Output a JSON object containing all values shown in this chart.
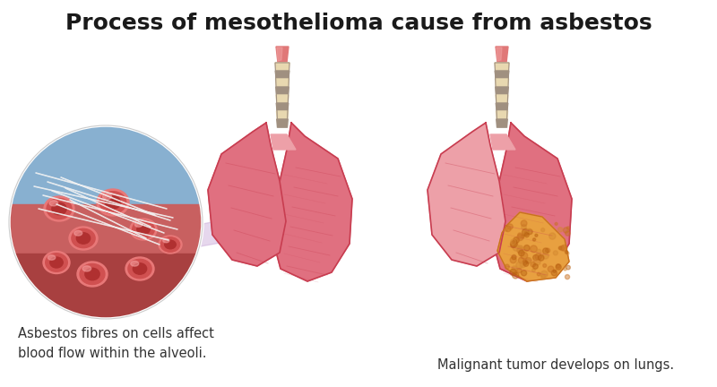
{
  "title": "Process of mesothelioma cause from asbestos",
  "title_fontsize": 18,
  "title_color": "#1a1a1a",
  "bg_color": "#ffffff",
  "caption1": "Asbestos fibres on cells affect\nblood flow within the alveoli.",
  "caption2": "Malignant tumor develops on lungs.",
  "caption_fontsize": 10.5,
  "lung_pink_dark": "#c83d50",
  "lung_pink_mid": "#e07080",
  "lung_pink_light": "#eda0a8",
  "lung_pink_vlight": "#f2bfc5",
  "lung_pink_pale": "#f5cdd0",
  "trachea_dark": "#a09080",
  "trachea_cream": "#e8d8b0",
  "trachea_pink_top": "#e07878",
  "trachea_pink_top2": "#f0a0a0",
  "tumor_orange": "#e8a040",
  "tumor_orange2": "#c87020",
  "tumor_orange3": "#d48830",
  "cell_dark_red": "#b03030",
  "cell_mid_red": "#d05050",
  "cell_light_red": "#e87878",
  "asbestos_white": "#f0f0f0",
  "magnify_blue_top": "#88b0d0",
  "magnify_blue_bot": "#6090b0",
  "magnify_purple": "#c8a8d8",
  "tissue_pink": "#c86060",
  "tissue_dark": "#a84040"
}
